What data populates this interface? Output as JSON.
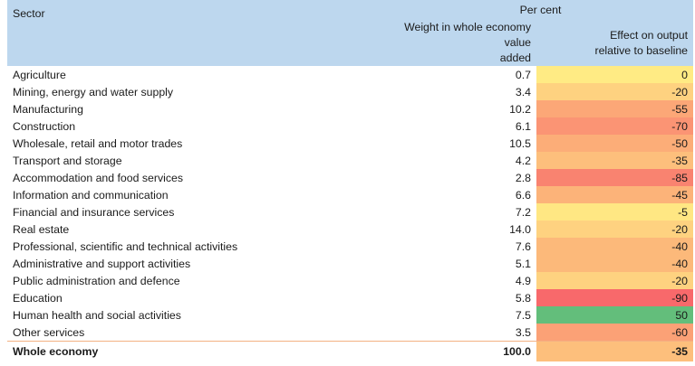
{
  "header": {
    "percent_label": "Per cent",
    "sector_label": "Sector",
    "weight_label_line1": "Weight in whole economy value",
    "weight_label_line2": "added",
    "effect_label_line1": "Effect on output",
    "effect_label_line2": "relative to baseline"
  },
  "rows": [
    {
      "sector": "Agriculture",
      "weight": "0.7",
      "effect": "0",
      "color": "#ffeb84"
    },
    {
      "sector": "Mining, energy and water supply",
      "weight": "3.4",
      "effect": "-20",
      "color": "#fed280"
    },
    {
      "sector": "Manufacturing",
      "weight": "10.2",
      "effect": "-55",
      "color": "#fca777"
    },
    {
      "sector": "Construction",
      "weight": "6.1",
      "effect": "-70",
      "color": "#fb9474"
    },
    {
      "sector": "Wholesale, retail and motor trades",
      "weight": "10.5",
      "effect": "-50",
      "color": "#fcad78"
    },
    {
      "sector": "Transport and storage",
      "weight": "4.2",
      "effect": "-35",
      "color": "#fdbf7c"
    },
    {
      "sector": "Accommodation and food services",
      "weight": "2.8",
      "effect": "-85",
      "color": "#f98370"
    },
    {
      "sector": "Information and communication",
      "weight": "6.6",
      "effect": "-45",
      "color": "#fcb379"
    },
    {
      "sector": "Financial and insurance services",
      "weight": "7.2",
      "effect": "-5",
      "color": "#ffe783"
    },
    {
      "sector": "Real estate",
      "weight": "14.0",
      "effect": "-20",
      "color": "#fed280"
    },
    {
      "sector": "Professional, scientific and technical activities",
      "weight": "7.6",
      "effect": "-40",
      "color": "#fcb97a"
    },
    {
      "sector": "Administrative and support activities",
      "weight": "5.1",
      "effect": "-40",
      "color": "#fcb97a"
    },
    {
      "sector": "Public administration and defence",
      "weight": "4.9",
      "effect": "-20",
      "color": "#fed280"
    },
    {
      "sector": "Education",
      "weight": "5.8",
      "effect": "-90",
      "color": "#f8696b"
    },
    {
      "sector": "Human health and social activities",
      "weight": "7.5",
      "effect": "50",
      "color": "#63be7b"
    },
    {
      "sector": "Other services",
      "weight": "3.5",
      "effect": "-60",
      "color": "#fba176"
    }
  ],
  "total": {
    "sector": "Whole economy",
    "weight": "100.0",
    "effect": "-35",
    "color": "#fdbf7c"
  }
}
